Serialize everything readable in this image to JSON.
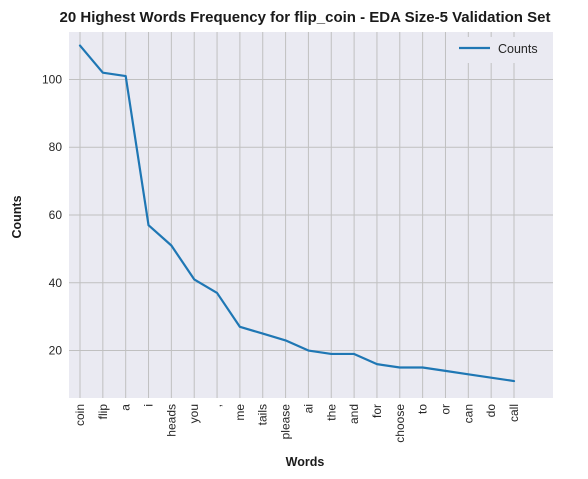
{
  "chart_data": {
    "type": "line",
    "title": "20 Highest Words Frequency for flip_coin - EDA Size-5 Validation Set",
    "xlabel": "Words",
    "ylabel": "Counts",
    "categories": [
      "coin",
      "flip",
      "a",
      "i",
      "heads",
      "you",
      ",",
      "me",
      "tails",
      "please",
      "ai",
      "the",
      "and",
      "for",
      "choose",
      "to",
      "or",
      "can",
      "do",
      "call"
    ],
    "series": [
      {
        "name": "Counts",
        "values": [
          110,
          102,
          101,
          57,
          51,
          41,
          37,
          27,
          25,
          23,
          20,
          19,
          19,
          16,
          15,
          15,
          14,
          13,
          12,
          11
        ],
        "color": "#1f77b4"
      }
    ],
    "ylim": [
      6,
      114
    ],
    "yticks": [
      20,
      40,
      60,
      80,
      100
    ],
    "grid": true,
    "legend": "top-right",
    "background": "#eaeaf2",
    "grid_color": "#c0c0c0"
  }
}
